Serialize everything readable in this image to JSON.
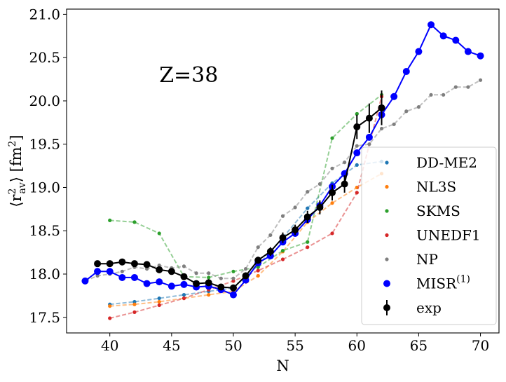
{
  "chart_data": {
    "type": "line",
    "title": "",
    "xlabel": "N",
    "ylabel_parts": {
      "open": "⟨r",
      "sup": "2",
      "sub": "av",
      "close": "⟩ [fm",
      "sup2": "2",
      "end": "]"
    },
    "xlim": [
      36.5,
      71.5
    ],
    "ylim": [
      17.32,
      21.06
    ],
    "x_ticks": [
      40,
      45,
      50,
      55,
      60,
      65,
      70
    ],
    "y_ticks": [
      17.5,
      18.0,
      18.5,
      19.0,
      19.5,
      20.0,
      20.5,
      21.0
    ],
    "x_tick_labels": [
      "40",
      "45",
      "50",
      "55",
      "60",
      "65",
      "70"
    ],
    "y_tick_labels": [
      "17.5",
      "18.0",
      "18.5",
      "19.0",
      "19.5",
      "20.0",
      "20.5",
      "21.0"
    ],
    "annotation": {
      "text": "Z=38",
      "x": 44,
      "y": 20.22
    },
    "legend_position": "lower-right",
    "series": [
      {
        "name": "DD-ME2",
        "color": "#1f77b4",
        "style": "dashed-small",
        "x": [
          40,
          42,
          44,
          46,
          48,
          50,
          52,
          54,
          56,
          58,
          60,
          62
        ],
        "y": [
          17.65,
          17.68,
          17.72,
          17.76,
          17.8,
          17.84,
          18.1,
          18.42,
          18.76,
          19.05,
          19.26,
          19.3
        ]
      },
      {
        "name": "NL3S",
        "color": "#ff7f0e",
        "style": "dashed-small",
        "x": [
          40,
          42,
          44,
          46,
          48,
          50,
          52,
          54,
          56,
          58,
          60,
          62
        ],
        "y": [
          17.63,
          17.65,
          17.68,
          17.72,
          17.76,
          17.8,
          17.98,
          18.26,
          18.6,
          18.82,
          19.0,
          19.16
        ]
      },
      {
        "name": "SKMS",
        "color": "#2ca02c",
        "style": "dashed-small",
        "x": [
          40,
          42,
          44,
          46,
          48,
          50,
          52,
          54,
          56,
          58,
          60,
          62
        ],
        "y": [
          18.62,
          18.6,
          18.47,
          17.97,
          17.96,
          18.03,
          18.08,
          18.27,
          18.37,
          19.57,
          19.85,
          20.07
        ]
      },
      {
        "name": "UNEDF1",
        "color": "#d62728",
        "style": "dashed-small",
        "x": [
          40,
          42,
          44,
          46,
          48,
          50,
          52,
          54,
          56,
          58,
          60,
          62
        ],
        "y": [
          17.49,
          17.56,
          17.64,
          17.72,
          17.82,
          17.92,
          18.04,
          18.17,
          18.31,
          18.47,
          18.94,
          20.05
        ]
      },
      {
        "name": "NP",
        "color": "#7f7f7f",
        "style": "dashed-small",
        "x": [
          38,
          39,
          40,
          41,
          42,
          43,
          44,
          45,
          46,
          47,
          48,
          49,
          50,
          51,
          52,
          53,
          54,
          55,
          56,
          57,
          58,
          59,
          60,
          61,
          62,
          63,
          64,
          65,
          66,
          67,
          68,
          69,
          70
        ],
        "y": [
          17.92,
          17.98,
          18.0,
          18.03,
          18.08,
          18.06,
          18.1,
          18.07,
          18.09,
          18.01,
          18.01,
          17.95,
          17.95,
          18.06,
          18.31,
          18.45,
          18.67,
          18.77,
          18.95,
          19.04,
          19.22,
          19.29,
          19.48,
          19.5,
          19.68,
          19.73,
          19.88,
          19.93,
          20.07,
          20.07,
          20.16,
          20.16,
          20.24
        ]
      },
      {
        "name": "MISR",
        "name_sup": "(1)",
        "color": "#0000ff",
        "style": "solid-big",
        "x": [
          38,
          39,
          40,
          41,
          42,
          43,
          44,
          45,
          46,
          47,
          48,
          49,
          50,
          51,
          52,
          53,
          54,
          55,
          56,
          57,
          58,
          59,
          60,
          61,
          62,
          63,
          64,
          65,
          66,
          67,
          68,
          69,
          70
        ],
        "y": [
          17.92,
          18.03,
          18.03,
          17.96,
          17.96,
          17.89,
          17.91,
          17.86,
          17.88,
          17.85,
          17.86,
          17.82,
          17.76,
          17.93,
          18.13,
          18.21,
          18.37,
          18.47,
          18.63,
          18.79,
          19.01,
          19.16,
          19.4,
          19.58,
          19.84,
          20.05,
          20.34,
          20.57,
          20.88,
          20.75,
          20.7,
          20.57,
          20.52
        ]
      },
      {
        "name": "exp",
        "color": "#000000",
        "style": "errorbar",
        "x": [
          39,
          40,
          41,
          42,
          43,
          44,
          45,
          46,
          47,
          48,
          49,
          50,
          51,
          52,
          53,
          54,
          55,
          56,
          57,
          58,
          59,
          60,
          61,
          62
        ],
        "y": [
          18.12,
          18.12,
          18.14,
          18.12,
          18.11,
          18.05,
          18.03,
          17.97,
          17.89,
          17.9,
          17.85,
          17.84,
          17.98,
          18.16,
          18.26,
          18.42,
          18.51,
          18.66,
          18.77,
          18.94,
          19.04,
          19.7,
          19.8,
          19.92
        ],
        "err": [
          0.03,
          0.03,
          0.03,
          0.03,
          0.03,
          0.03,
          0.03,
          0.03,
          0.03,
          0.03,
          0.03,
          0.03,
          0.04,
          0.04,
          0.05,
          0.06,
          0.06,
          0.07,
          0.08,
          0.09,
          0.1,
          0.14,
          0.17,
          0.2
        ]
      }
    ]
  }
}
